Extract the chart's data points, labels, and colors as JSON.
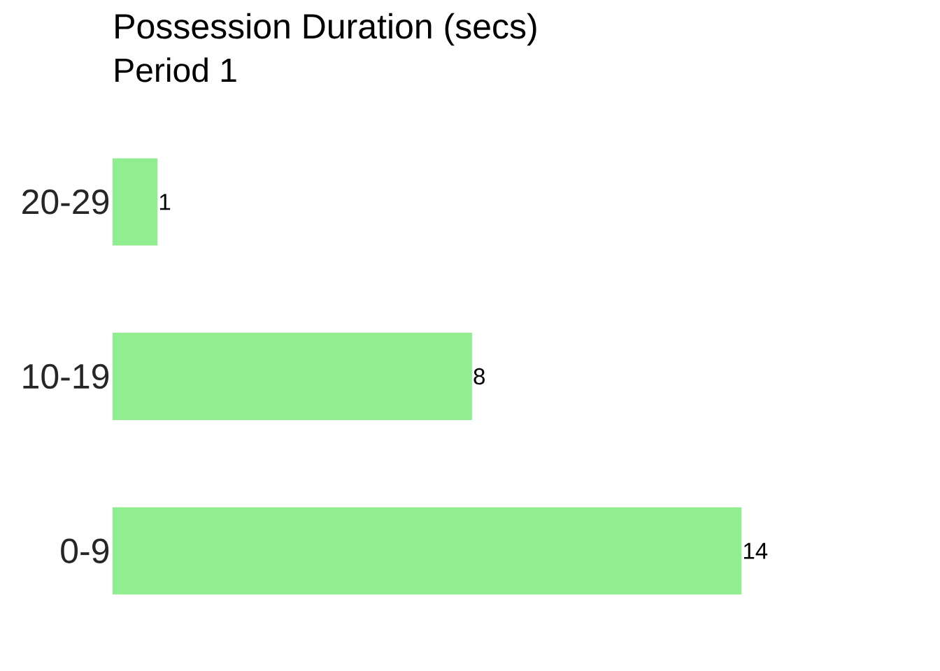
{
  "chart_data": {
    "type": "bar",
    "orientation": "horizontal",
    "title": "Possession Duration (secs)",
    "subtitle": "Period 1",
    "categories": [
      "20-29",
      "10-19",
      "0-9"
    ],
    "values": [
      1,
      8,
      14
    ],
    "color": "#90ee90",
    "data_labels": true
  }
}
